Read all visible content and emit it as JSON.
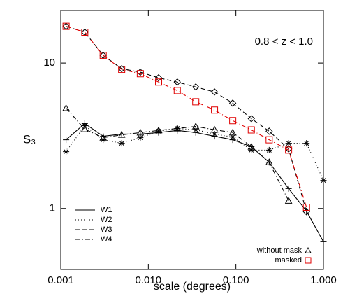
{
  "chart_data": {
    "type": "line",
    "annotation": "0.8 < z < 1.0",
    "xlabel": "scale (degrees)",
    "ylabel": "S₃",
    "x": [
      0.00115,
      0.00188,
      0.00305,
      0.00496,
      0.0081,
      0.0131,
      0.0214,
      0.0348,
      0.057,
      0.092,
      0.15,
      0.24,
      0.4,
      0.64,
      1.0
    ],
    "xlim": [
      0.001,
      1.0
    ],
    "xticks": [
      0.001,
      {
        "value": 0.01,
        "label": "0.010"
      },
      {
        "value": 0.1,
        "label": "0.100"
      },
      {
        "value": 1,
        "label": "1.000"
      }
    ],
    "ylim": [
      0.38,
      23
    ],
    "yticks": [
      1,
      10
    ],
    "log_x": true,
    "log_y": true,
    "series": [
      {
        "name": "W1",
        "style": "solid",
        "marker": "plus",
        "color": "#000000",
        "values": [
          2.97,
          3.84,
          3.14,
          3.25,
          3.25,
          3.33,
          3.44,
          3.33,
          3.14,
          2.97,
          2.66,
          2.08,
          1.37,
          0.96,
          0.59
        ]
      },
      {
        "name": "W2",
        "style": "dotted",
        "marker": "asterisk",
        "color": "#000000",
        "values": [
          2.46,
          3.71,
          2.97,
          2.81,
          3.07,
          3.4,
          3.55,
          3.48,
          3.25,
          3.1,
          2.52,
          2.52,
          2.81,
          2.81,
          1.56
        ]
      },
      {
        "name": "W3",
        "style": "dashed",
        "marker": "diamond",
        "color": "#000000",
        "values": [
          17.9,
          16.3,
          11.3,
          9.15,
          8.66,
          7.92,
          7.4,
          6.85,
          6.33,
          5.3,
          4.15,
          3.4,
          2.57,
          0.95,
          null
        ]
      },
      {
        "name": "W4",
        "style": "dashdot",
        "marker": "triangle",
        "color": "#000000",
        "values": [
          4.9,
          3.51,
          3.07,
          3.21,
          3.33,
          3.44,
          3.55,
          3.67,
          3.48,
          3.33,
          2.66,
          2.08,
          1.13,
          null,
          null
        ]
      },
      {
        "name": "masked",
        "style": "dashdot",
        "marker": "square",
        "color": "#e00000",
        "values": [
          17.9,
          16.3,
          11.3,
          9.05,
          8.45,
          7.4,
          6.47,
          5.42,
          4.75,
          4.02,
          3.47,
          2.97,
          2.52,
          1.02,
          null
        ]
      }
    ],
    "line_legend": [
      "W1",
      "W2",
      "W3",
      "W4"
    ],
    "marker_legend": [
      {
        "label": "without mask",
        "marker": "triangle",
        "color": "#000000"
      },
      {
        "label": "masked",
        "marker": "square",
        "color": "#e00000"
      }
    ]
  }
}
